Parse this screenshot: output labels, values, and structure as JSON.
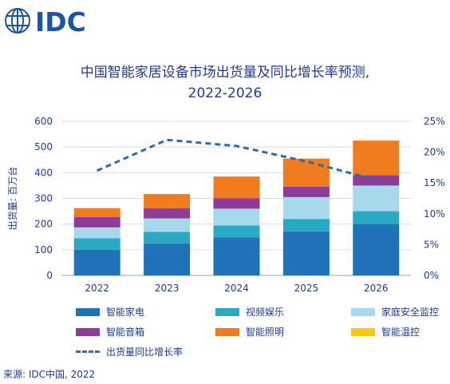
{
  "logo": {
    "text": "IDC",
    "color": "#1a56a6"
  },
  "title_lines": [
    "中国智能家居设备市场出货量及同比增长率预测,",
    "2022-2026"
  ],
  "source": "来源: IDC中国, 2022",
  "colors": {
    "智能家电": "#1f72b8",
    "视频娱乐": "#2aa9c4",
    "家庭安全监控": "#a7d9ec",
    "智能音箱": "#8e3c97",
    "智能照明": "#f07c1f",
    "智能温控": "#f5c518",
    "出货量同比增长率": "#2b6cb0"
  },
  "chart_data": {
    "type": "bar",
    "stacked": true,
    "categories": [
      "2022",
      "2023",
      "2024",
      "2025",
      "2026"
    ],
    "series": [
      {
        "name": "智能家电",
        "values": [
          100,
          125,
          148,
          172,
          200
        ]
      },
      {
        "name": "视频娱乐",
        "values": [
          45,
          45,
          47,
          48,
          50
        ]
      },
      {
        "name": "家庭安全监控",
        "values": [
          42,
          52,
          65,
          85,
          100
        ]
      },
      {
        "name": "智能音箱",
        "values": [
          40,
          40,
          40,
          40,
          40
        ]
      },
      {
        "name": "智能照明",
        "values": [
          35,
          55,
          85,
          110,
          135
        ]
      },
      {
        "name": "智能温控",
        "values": [
          0,
          0,
          0,
          0,
          0
        ]
      }
    ],
    "line_series": {
      "name": "出货量同比增长率",
      "values": [
        17,
        22,
        21,
        18.5,
        15.5
      ],
      "axis": "right",
      "style": "dashed"
    },
    "ylabel": "出货量: 百万台",
    "ylim": [
      0,
      600
    ],
    "yticks": [
      "0",
      "100",
      "200",
      "300",
      "400",
      "500",
      "600"
    ],
    "y2lim": [
      0,
      25
    ],
    "y2ticks": [
      "0%",
      "5%",
      "10%",
      "15%",
      "20%",
      "25%"
    ],
    "grid": true,
    "legend_position": "bottom"
  }
}
